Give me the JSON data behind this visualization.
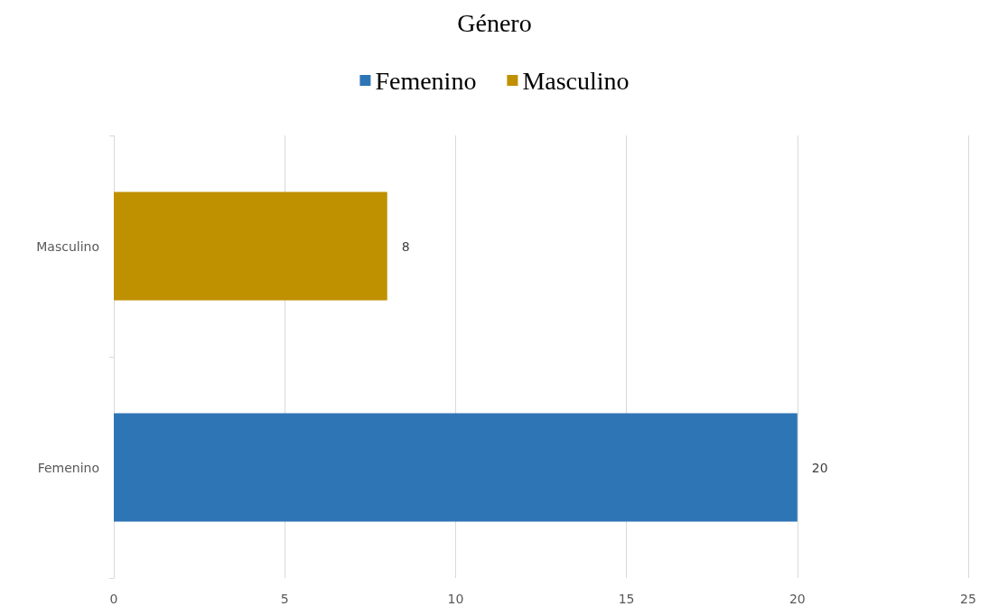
{
  "chart_data": {
    "type": "bar",
    "title": "Género",
    "orientation": "horizontal",
    "categories": [
      "Masculino",
      "Femenino"
    ],
    "series": [
      {
        "name": "Femenino",
        "color": "#2e75b6",
        "values": [
          null,
          20
        ]
      },
      {
        "name": "Masculino",
        "color": "#bf9000",
        "values": [
          8,
          null
        ]
      }
    ],
    "xlim": [
      0,
      25
    ],
    "xticks": [
      0,
      5,
      10,
      15,
      20,
      25
    ],
    "grid": "x",
    "legend": "top",
    "data_labels": true
  }
}
